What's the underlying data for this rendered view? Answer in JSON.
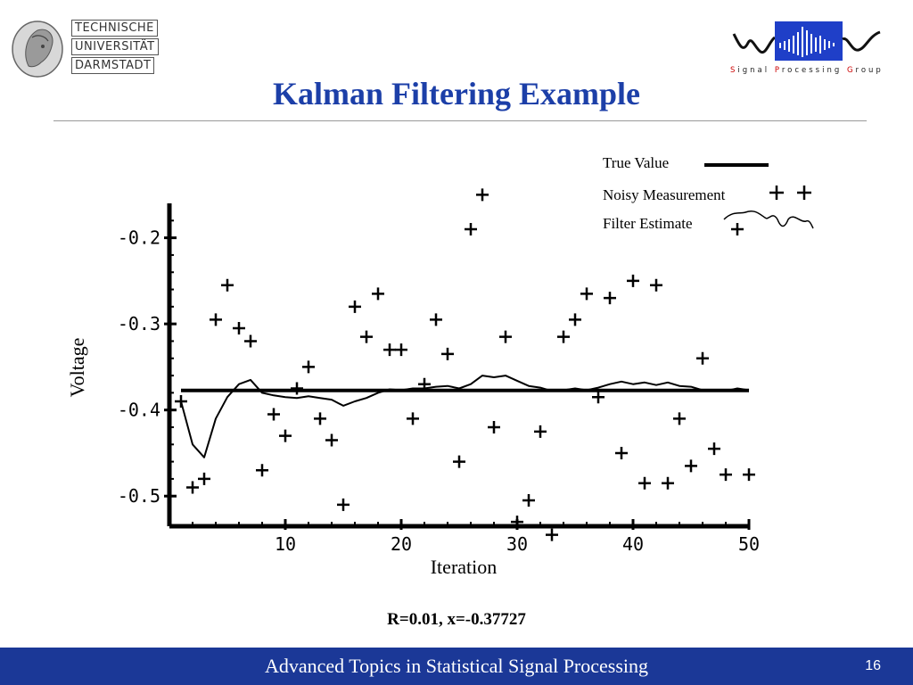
{
  "header": {
    "university_lines": [
      "TECHNISCHE",
      "UNIVERSITÄT",
      "DARMSTADT"
    ],
    "group_logo_text": [
      {
        "initial": "S",
        "rest": "ignal "
      },
      {
        "initial": "P",
        "rest": "rocessing "
      },
      {
        "initial": "G",
        "rest": "roup"
      }
    ]
  },
  "slide": {
    "title": "Kalman Filtering Example",
    "caption": "R=0.01, x=-0.37727",
    "footer_title": "Advanced Topics in Statistical Signal Processing",
    "page_number": "16"
  },
  "colors": {
    "title": "#1c3fa8",
    "footer_bg": "#1b3897",
    "plot": "#000000"
  },
  "chart_data": {
    "type": "line",
    "xlabel": "Iteration",
    "ylabel": "Voltage",
    "xlim": [
      0,
      50
    ],
    "ylim": [
      -0.535,
      -0.16
    ],
    "xticks": [
      10,
      20,
      30,
      40,
      50
    ],
    "yticks": [
      -0.2,
      -0.3,
      -0.4,
      -0.5
    ],
    "xtick_labels": [
      "10",
      "20",
      "30",
      "40",
      "50"
    ],
    "ytick_labels": [
      "-0.2",
      "-0.3",
      "-0.4",
      "-0.5"
    ],
    "legend_placement": "top-right",
    "legend": [
      {
        "label": "True Value",
        "style": "thick-line"
      },
      {
        "label": "Noisy Measurement",
        "style": "plus"
      },
      {
        "label": "Filter Estimate",
        "style": "wavy-line"
      }
    ],
    "series": [
      {
        "name": "True Value",
        "style": "line",
        "x": [
          1,
          50
        ],
        "y": [
          -0.37727,
          -0.37727
        ]
      },
      {
        "name": "Noisy Measurement",
        "style": "markers",
        "x": [
          1,
          2,
          3,
          4,
          5,
          6,
          7,
          8,
          9,
          10,
          11,
          12,
          13,
          14,
          15,
          16,
          17,
          18,
          19,
          20,
          21,
          22,
          23,
          24,
          25,
          26,
          27,
          28,
          29,
          30,
          31,
          32,
          33,
          34,
          35,
          36,
          37,
          38,
          39,
          40,
          41,
          42,
          43,
          44,
          45,
          46,
          47,
          48,
          49,
          50
        ],
        "y": [
          -0.39,
          -0.49,
          -0.48,
          -0.295,
          -0.255,
          -0.305,
          -0.32,
          -0.47,
          -0.405,
          -0.43,
          -0.375,
          -0.35,
          -0.41,
          -0.435,
          -0.51,
          -0.28,
          -0.315,
          -0.265,
          -0.33,
          -0.33,
          -0.41,
          -0.37,
          -0.295,
          -0.335,
          -0.46,
          -0.19,
          -0.15,
          -0.42,
          -0.315,
          -0.53,
          -0.505,
          -0.425,
          -0.545,
          -0.315,
          -0.295,
          -0.265,
          -0.385,
          -0.27,
          -0.45,
          -0.25,
          -0.485,
          -0.255,
          -0.485,
          -0.41,
          -0.465,
          -0.34,
          -0.445,
          -0.475,
          -0.19,
          -0.475
        ]
      },
      {
        "name": "Filter Estimate",
        "style": "line",
        "x": [
          1,
          2,
          3,
          4,
          5,
          6,
          7,
          8,
          9,
          10,
          11,
          12,
          13,
          14,
          15,
          16,
          17,
          18,
          19,
          20,
          21,
          22,
          23,
          24,
          25,
          26,
          27,
          28,
          29,
          30,
          31,
          32,
          33,
          34,
          35,
          36,
          37,
          38,
          39,
          40,
          41,
          42,
          43,
          44,
          45,
          46,
          47,
          48,
          49,
          50
        ],
        "y": [
          -0.39,
          -0.44,
          -0.455,
          -0.41,
          -0.385,
          -0.37,
          -0.365,
          -0.38,
          -0.383,
          -0.385,
          -0.386,
          -0.384,
          -0.386,
          -0.388,
          -0.395,
          -0.39,
          -0.386,
          -0.38,
          -0.376,
          -0.377,
          -0.375,
          -0.375,
          -0.373,
          -0.372,
          -0.375,
          -0.37,
          -0.36,
          -0.362,
          -0.36,
          -0.366,
          -0.372,
          -0.374,
          -0.378,
          -0.377,
          -0.375,
          -0.377,
          -0.374,
          -0.37,
          -0.367,
          -0.37,
          -0.368,
          -0.371,
          -0.368,
          -0.372,
          -0.373,
          -0.377,
          -0.377,
          -0.378,
          -0.375,
          -0.377
        ]
      }
    ]
  }
}
